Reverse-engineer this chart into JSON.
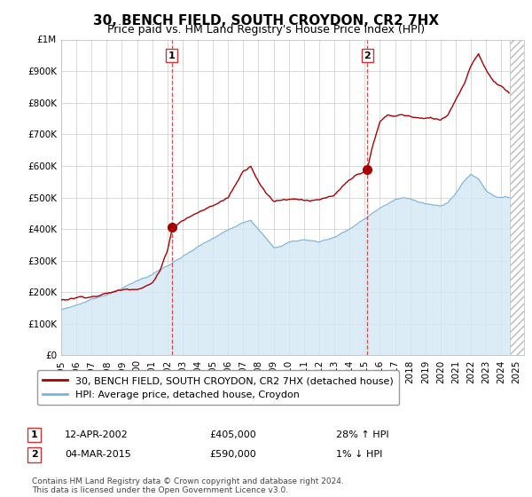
{
  "title": "30, BENCH FIELD, SOUTH CROYDON, CR2 7HX",
  "subtitle": "Price paid vs. HM Land Registry's House Price Index (HPI)",
  "ylim": [
    0,
    1000000
  ],
  "xlim_start": 1995.0,
  "xlim_end": 2025.5,
  "sale1_date": 2002.28,
  "sale1_price": 405000,
  "sale1_label": "1",
  "sale1_date_str": "12-APR-2002",
  "sale1_price_str": "£405,000",
  "sale1_hpi_str": "28% ↑ HPI",
  "sale2_date": 2015.17,
  "sale2_price": 590000,
  "sale2_label": "2",
  "sale2_date_str": "04-MAR-2015",
  "sale2_price_str": "£590,000",
  "sale2_hpi_str": "1% ↓ HPI",
  "property_label": "30, BENCH FIELD, SOUTH CROYDON, CR2 7HX (detached house)",
  "hpi_label": "HPI: Average price, detached house, Croydon",
  "property_color": "#aa0000",
  "hpi_color": "#7bb3d9",
  "hpi_fill_color": "#d4e8f5",
  "vline_color": "#cc3333",
  "grid_color": "#cccccc",
  "hatch_color": "#cccccc",
  "footnote": "Contains HM Land Registry data © Crown copyright and database right 2024.\nThis data is licensed under the Open Government Licence v3.0.",
  "yticks": [
    0,
    100000,
    200000,
    300000,
    400000,
    500000,
    600000,
    700000,
    800000,
    900000
  ],
  "ytick_labels": [
    "£0",
    "£100K",
    "£200K",
    "£300K",
    "£400K",
    "£500K",
    "£600K",
    "£700K",
    "£800K",
    "£900K"
  ],
  "xticks": [
    1995,
    1996,
    1997,
    1998,
    1999,
    2000,
    2001,
    2002,
    2003,
    2004,
    2005,
    2006,
    2007,
    2008,
    2009,
    2010,
    2011,
    2012,
    2013,
    2014,
    2015,
    2016,
    2017,
    2018,
    2019,
    2020,
    2021,
    2022,
    2023,
    2024,
    2025
  ],
  "hatch_start": 2024.58,
  "hatch_end": 2025.5
}
